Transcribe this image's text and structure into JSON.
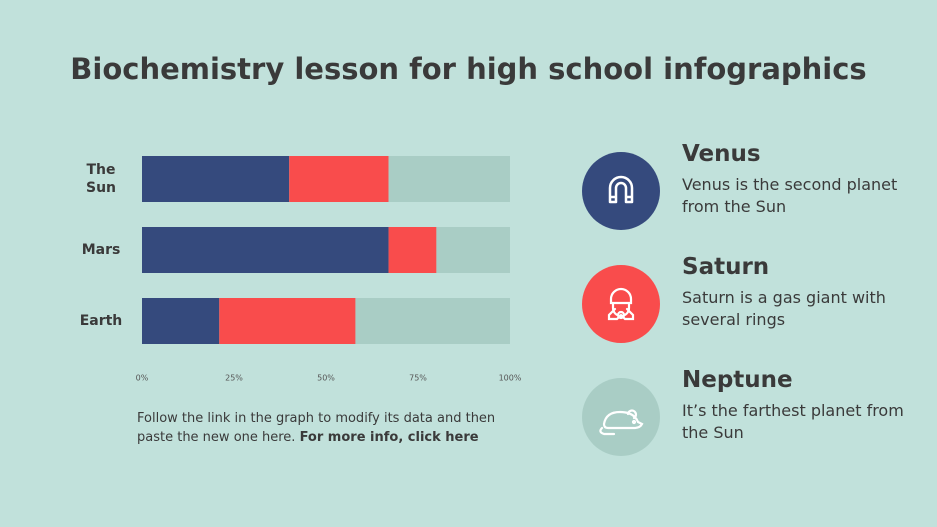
{
  "title": "Biochemistry lesson for high school infographics",
  "chart_data": {
    "type": "stacked-bar-horizontal",
    "categories": [
      "The Sun",
      "Mars",
      "Earth"
    ],
    "series": [
      {
        "color": "#354a7d",
        "values": [
          40,
          67,
          21
        ]
      },
      {
        "color": "#f94c4c",
        "values": [
          27,
          13,
          37
        ]
      },
      {
        "color": "#a9cdc5",
        "values": [
          33,
          20,
          42
        ]
      }
    ],
    "xlim": [
      0,
      100
    ],
    "xticks": [
      {
        "value": 0,
        "label": "0%"
      },
      {
        "value": 25,
        "label": "25%"
      },
      {
        "value": 50,
        "label": "50%"
      },
      {
        "value": 75,
        "label": "75%"
      },
      {
        "value": 100,
        "label": "100%"
      }
    ]
  },
  "note": {
    "text": "Follow the link in the graph to modify its data and then paste the new one here.",
    "link": "For more info, click here"
  },
  "items": [
    {
      "title": "Venus",
      "text": "Venus is the second planet from the Sun"
    },
    {
      "title": "Saturn",
      "text": "Saturn is a gas giant with several rings"
    },
    {
      "title": "Neptune",
      "text": "It’s the farthest planet from the Sun"
    }
  ]
}
